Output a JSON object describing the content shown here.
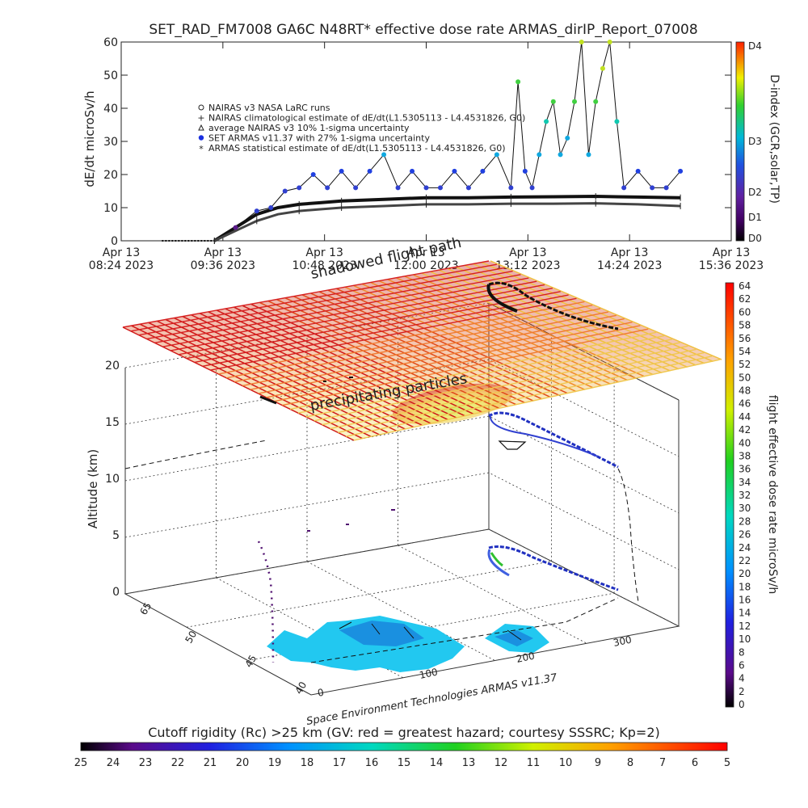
{
  "title": "SET_RAD_FM7008  GA6C N48RT* effective dose rate ARMAS_dirIP_Report_07008",
  "top_panel": {
    "ylabel": "dE/dt microSv/h",
    "y_ticks": [
      "0",
      "10",
      "20",
      "30",
      "40",
      "50",
      "60"
    ],
    "x_ticks": [
      {
        "d": "Apr 13",
        "t": "08:24 2023"
      },
      {
        "d": "Apr 13",
        "t": "09:36 2023"
      },
      {
        "d": "Apr 13",
        "t": "10:48 2023"
      },
      {
        "d": "Apr 13",
        "t": "12:00 2023"
      },
      {
        "d": "Apr 13",
        "t": "13:12 2023"
      },
      {
        "d": "Apr 13",
        "t": "14:24 2023"
      },
      {
        "d": "Apr 13",
        "t": "15:36 2023"
      }
    ],
    "legend": [
      {
        "symbol": "circle",
        "label": "NAIRAS v3 NASA LaRC runs"
      },
      {
        "symbol": "plus",
        "label": "NAIRAS climatological estimate of dE/dt(L1.5305113 - L4.4531826, G0)"
      },
      {
        "symbol": "triangle",
        "label": "average NAIRAS v3 10% 1-sigma uncertainty"
      },
      {
        "symbol": "dot-blue",
        "label": "SET ARMAS v11.37 with 27% 1-sigma uncertainty"
      },
      {
        "symbol": "star",
        "label": "ARMAS statistical estimate of dE/dt(L1.5305113 - L4.4531826, G0)"
      }
    ],
    "dindex_label": "D-index (GCR,solar,TP)",
    "dindex_ticks": [
      "D4",
      "D3",
      "D2",
      "D1",
      "D0"
    ]
  },
  "chart_data": [
    {
      "type": "scatter",
      "title": "SET_RAD_FM7008  GA6C N48RT* effective dose rate ARMAS_dirIP_Report_07008",
      "xlabel": "",
      "ylabel": "dE/dt microSv/h",
      "xlim": [
        "2023-04-13 08:24",
        "2023-04-13 15:36"
      ],
      "ylim": [
        0,
        60
      ],
      "series": [
        {
          "name": "SET ARMAS v11.37 with 27% 1-sigma uncertainty",
          "x": [
            "09:45",
            "10:00",
            "10:10",
            "10:20",
            "10:30",
            "10:40",
            "10:50",
            "11:00",
            "11:10",
            "11:20",
            "11:30",
            "11:40",
            "11:50",
            "12:00",
            "12:10",
            "12:20",
            "12:30",
            "12:40",
            "12:50",
            "13:00",
            "13:05",
            "13:10",
            "13:15",
            "13:20",
            "13:25",
            "13:30",
            "13:35",
            "13:40",
            "13:45",
            "13:50",
            "13:55",
            "14:00",
            "14:05",
            "14:10",
            "14:15",
            "14:20",
            "14:30",
            "14:40",
            "14:50",
            "15:00"
          ],
          "values": [
            4,
            9,
            10,
            15,
            16,
            20,
            16,
            21,
            16,
            21,
            26,
            16,
            21,
            16,
            16,
            21,
            16,
            21,
            26,
            16,
            48,
            21,
            16,
            26,
            36,
            42,
            26,
            31,
            42,
            60,
            26,
            42,
            52,
            60,
            36,
            16,
            21,
            16,
            16,
            21
          ]
        },
        {
          "name": "NAIRAS climatological estimate of dE/dt(L1.5305113 - L4.4531826, G0)",
          "x": [
            "09:30",
            "09:45",
            "10:00",
            "10:15",
            "10:30",
            "10:45",
            "11:00",
            "11:30",
            "12:00",
            "12:30",
            "13:00",
            "13:30",
            "14:00",
            "14:30",
            "15:00"
          ],
          "values": [
            0,
            4,
            8,
            10,
            11,
            11.5,
            12,
            12.5,
            13,
            13,
            13.2,
            13.3,
            13.4,
            13.2,
            13
          ]
        },
        {
          "name": "ARMAS statistical estimate of dE/dt(L1.5305113 - L4.4531826, G0)",
          "x": [
            "09:30",
            "09:45",
            "10:00",
            "10:15",
            "10:30",
            "10:45",
            "11:00",
            "11:30",
            "12:00",
            "12:30",
            "13:00",
            "13:30",
            "14:00",
            "14:30",
            "15:00"
          ],
          "values": [
            0,
            3,
            6,
            8,
            9,
            9.5,
            10,
            10.5,
            11,
            11,
            11.2,
            11.2,
            11.3,
            11,
            10.5
          ]
        }
      ]
    },
    {
      "type": "scatter",
      "title": "",
      "xlabel": "",
      "ylabel": "Altitude (km)",
      "altitude_ticks": [
        "0",
        "5",
        "10",
        "15",
        "20"
      ],
      "lat_ticks": [
        "40",
        "45",
        "50",
        "65"
      ],
      "lon_ticks": [
        "0",
        "100",
        "200",
        "300"
      ],
      "ylim": [
        0,
        20
      ]
    }
  ],
  "scene": {
    "annotation_shadow": "shadowed flight path",
    "annotation_precip": "precipitating particles",
    "ylabel": "Altitude (km)",
    "alt_ticks": [
      "0",
      "5",
      "10",
      "15",
      "20"
    ],
    "lat_ticks": [
      "65",
      "50",
      "45",
      "40"
    ],
    "lon_ticks": [
      "0",
      "100",
      "200",
      "300"
    ],
    "credit": "Space Environment Technologies ARMAS v11.37"
  },
  "right_colorbar": {
    "label": "flight effective dose rate microSv/h",
    "ticks": [
      "64",
      "62",
      "60",
      "58",
      "56",
      "54",
      "52",
      "50",
      "48",
      "46",
      "44",
      "42",
      "40",
      "38",
      "36",
      "34",
      "32",
      "30",
      "28",
      "26",
      "24",
      "22",
      "20",
      "18",
      "16",
      "14",
      "12",
      "10",
      "8",
      "6",
      "4",
      "2",
      "0"
    ]
  },
  "bottom_colorbar": {
    "label": "Cutoff rigidity (Rc) >25 km (GV: red = greatest hazard; courtesy SSSRC; Kp=2)",
    "ticks": [
      "25",
      "24",
      "23",
      "22",
      "21",
      "20",
      "19",
      "18",
      "17",
      "16",
      "15",
      "14",
      "13",
      "12",
      "11",
      "10",
      "9",
      "8",
      "7",
      "6",
      "5"
    ]
  }
}
